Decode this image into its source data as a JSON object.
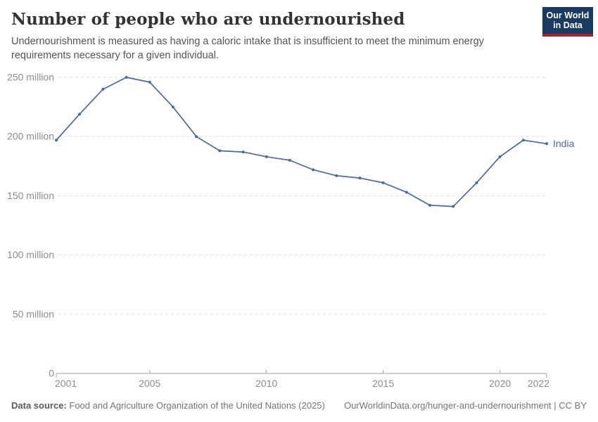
{
  "header": {
    "title": "Number of people who are undernourished",
    "subtitle": "Undernourishment is measured as having a caloric intake that is insufficient to meet the minimum energy requirements necessary for a given individual.",
    "logo": {
      "line1": "Our World",
      "line2": "in Data",
      "bg_color": "#1a3a5f",
      "accent_color": "#a02336",
      "text_color": "#ffffff"
    }
  },
  "chart_data": {
    "type": "line",
    "title": "Number of people who are undernourished",
    "unit": "million people",
    "x": [
      2001,
      2002,
      2003,
      2004,
      2005,
      2006,
      2007,
      2008,
      2009,
      2010,
      2011,
      2012,
      2013,
      2014,
      2015,
      2016,
      2017,
      2018,
      2019,
      2020,
      2021,
      2022
    ],
    "series": [
      {
        "name": "India",
        "color": "#4c6a9c",
        "values": [
          197,
          219,
          240,
          250,
          246,
          225,
          200,
          188,
          187,
          183,
          180,
          172,
          167,
          165,
          161,
          153,
          142,
          141,
          161,
          183,
          197,
          194
        ]
      }
    ],
    "x_ticks": [
      2001,
      2005,
      2010,
      2015,
      2020,
      2022
    ],
    "y_ticks": [
      0,
      50,
      100,
      150,
      200,
      250
    ],
    "y_tick_labels": [
      "0",
      "50 million",
      "100 million",
      "150 million",
      "200 million",
      "250 million"
    ],
    "xlim": [
      2001,
      2022
    ],
    "ylim": [
      0,
      250
    ],
    "grid": true,
    "gridline_style": "dashed",
    "legend_position": "end-of-line",
    "end_label": "India"
  },
  "footer": {
    "source_label": "Data source:",
    "source_text": "Food and Agriculture Organization of the United Nations (2025)",
    "link_text": "OurWorldinData.org/hunger-and-undernourishment | CC BY"
  },
  "colors": {
    "line": "#4c6a9c",
    "gridline": "#dedede",
    "axis": "#a5a5a5",
    "tick_label": "#8d8d8d",
    "title": "#333333",
    "subtitle": "#555555",
    "footer": "#757575"
  }
}
